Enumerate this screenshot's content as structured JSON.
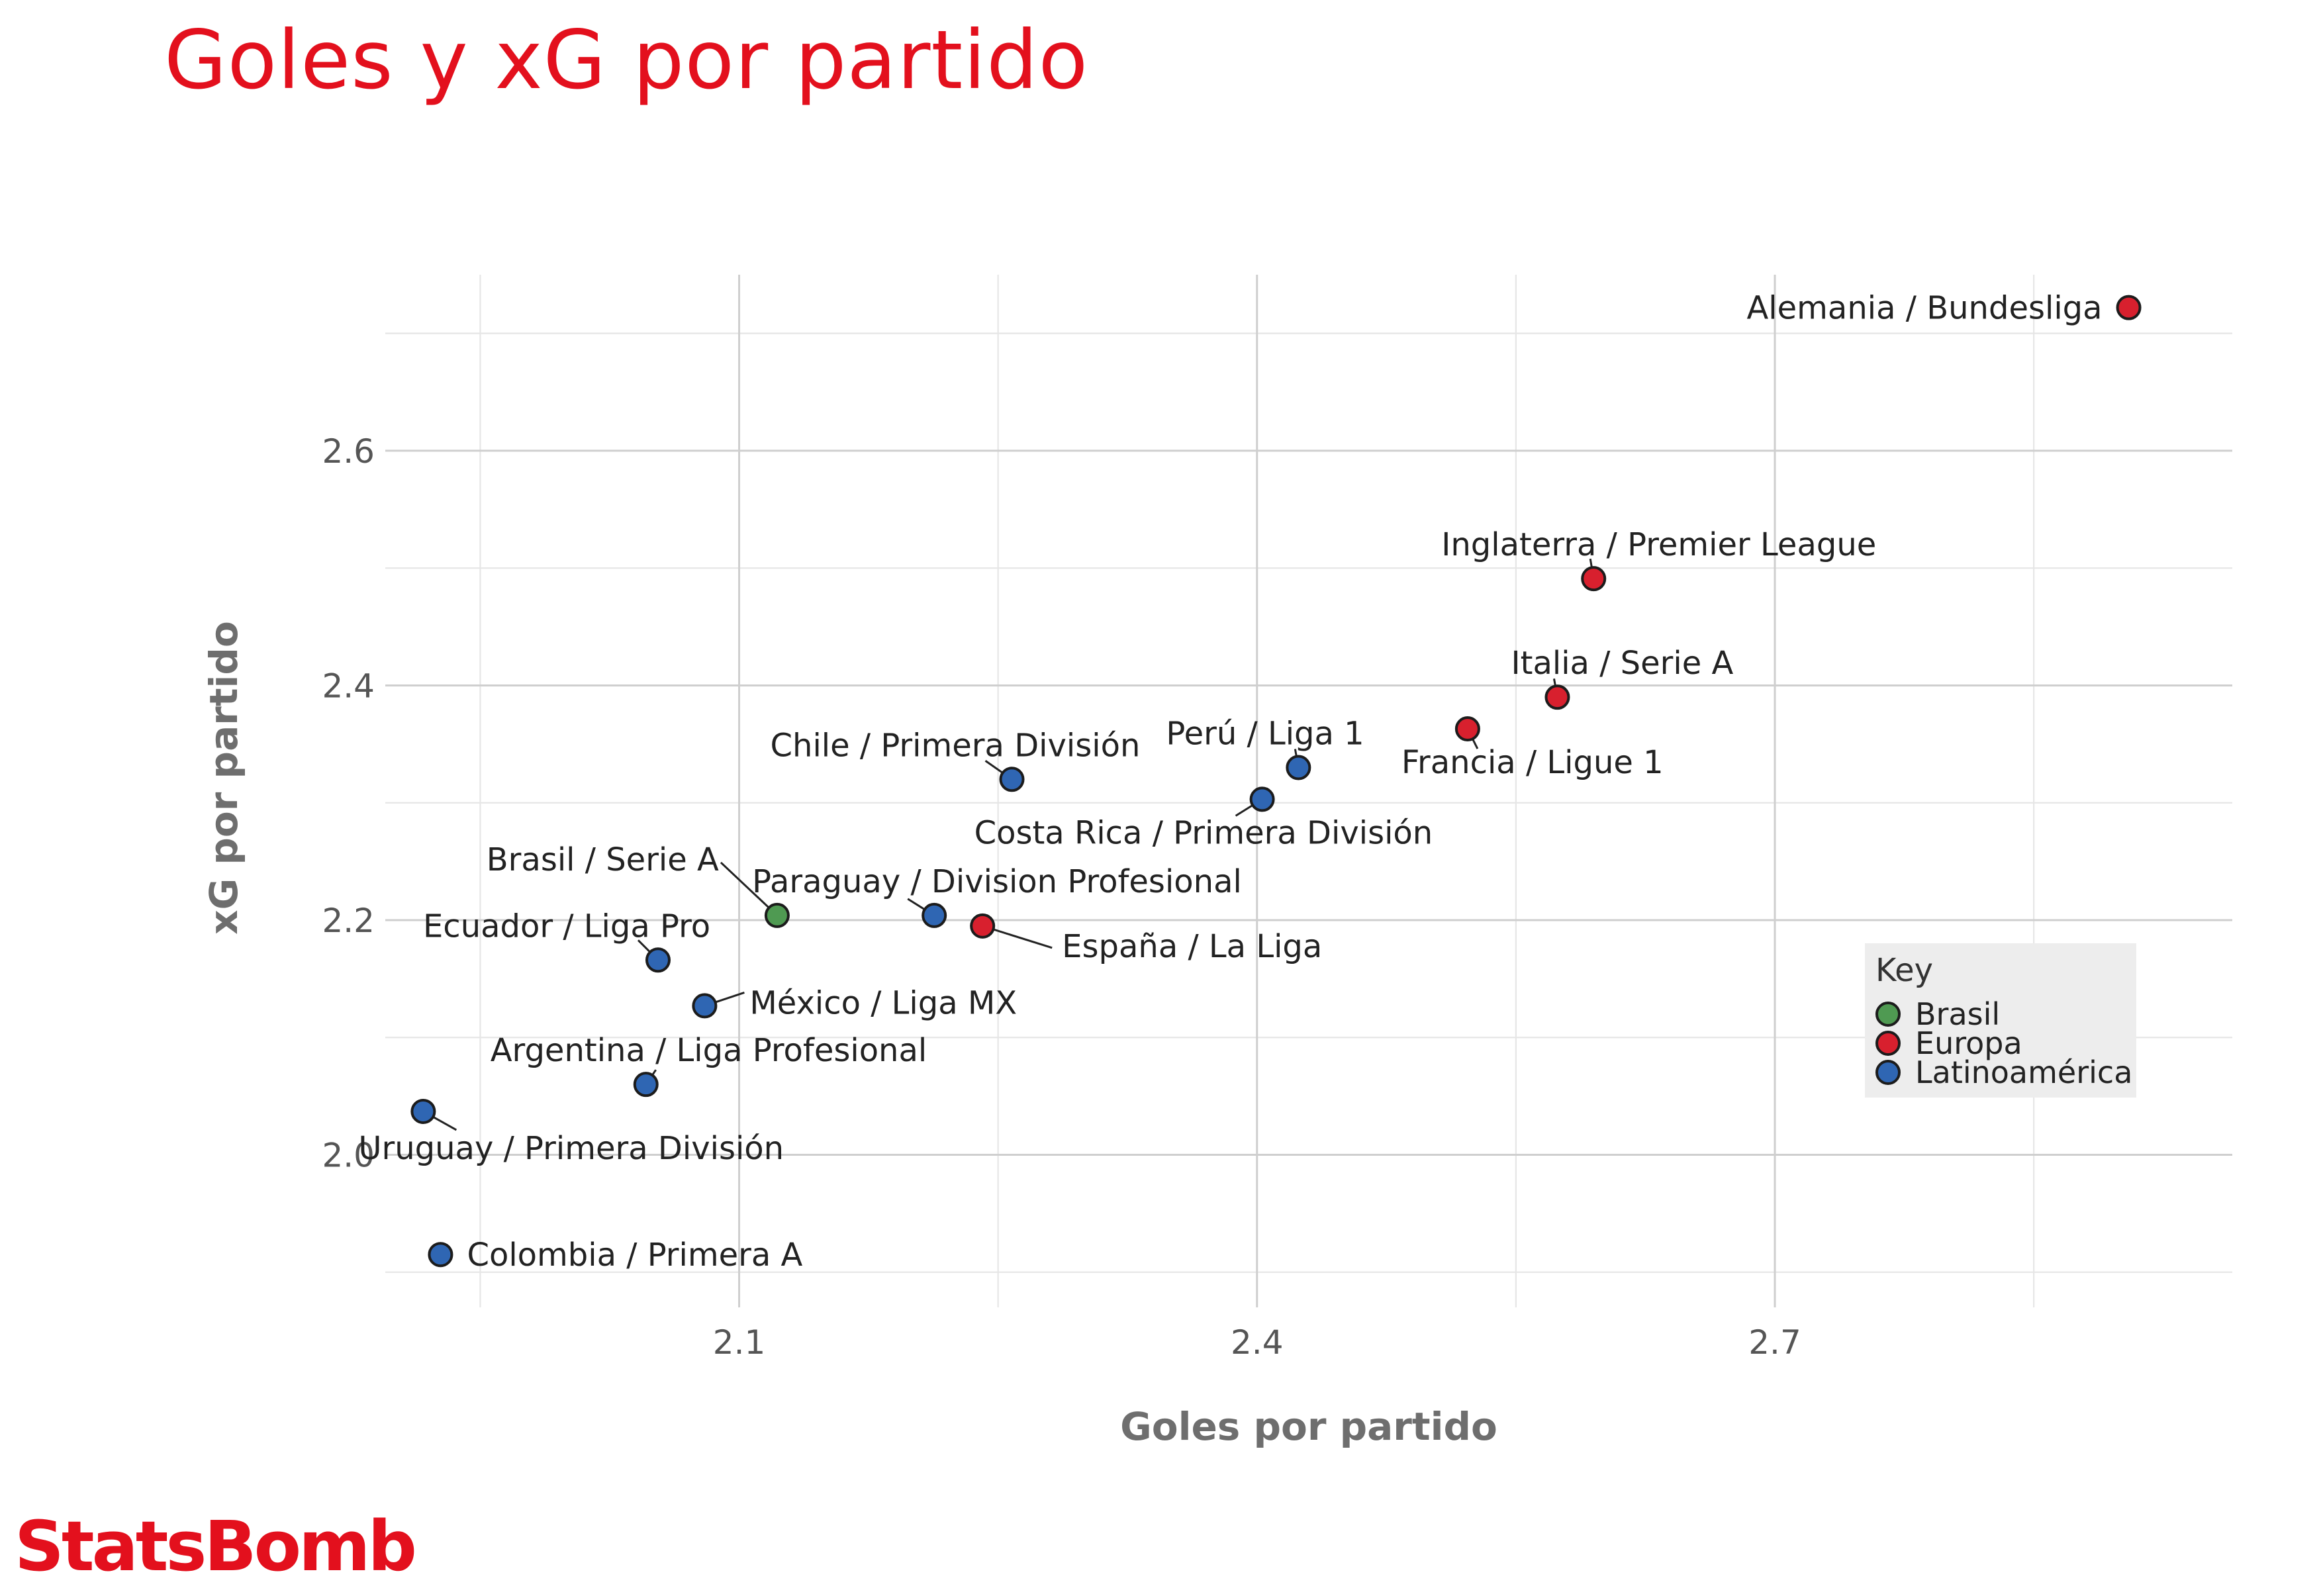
{
  "title": "Goles y xG por partido",
  "brand": "StatsBomb",
  "chart_data": {
    "type": "scatter",
    "title": "Goles y xG por partido",
    "xlabel": "Goles por partido",
    "ylabel": "xG por partido",
    "xlim": [
      1.895,
      2.965
    ],
    "ylim": [
      1.87,
      2.75
    ],
    "x_ticks": [
      2.1,
      2.4,
      2.7
    ],
    "y_ticks": [
      2.0,
      2.2,
      2.4,
      2.6
    ],
    "x_tick_labels": [
      "2.1",
      "2.4",
      "2.7"
    ],
    "y_tick_labels": [
      "2.0",
      "2.2",
      "2.4",
      "2.6"
    ],
    "grid": true,
    "legend": {
      "title": "Key",
      "position": "right",
      "entries": [
        {
          "name": "Brasil",
          "color": "#4f9a52"
        },
        {
          "name": "Europa",
          "color": "#d8202e"
        },
        {
          "name": "Latinoamérica",
          "color": "#2f66b3"
        }
      ]
    },
    "points": [
      {
        "label": "Alemania / Bundesliga",
        "group": "Europa",
        "x": 2.905,
        "y": 2.722
      },
      {
        "label": "Inglaterra / Premier League",
        "group": "Europa",
        "x": 2.595,
        "y": 2.491
      },
      {
        "label": "Italia / Serie A",
        "group": "Europa",
        "x": 2.574,
        "y": 2.39
      },
      {
        "label": "Francia / Ligue 1",
        "group": "Europa",
        "x": 2.522,
        "y": 2.363
      },
      {
        "label": "España / La Liga",
        "group": "Europa",
        "x": 2.241,
        "y": 2.195
      },
      {
        "label": "Perú / Liga 1",
        "group": "Latinoamérica",
        "x": 2.424,
        "y": 2.33
      },
      {
        "label": "Costa Rica / Primera División",
        "group": "Latinoamérica",
        "x": 2.403,
        "y": 2.303
      },
      {
        "label": "Chile / Primera División",
        "group": "Latinoamérica",
        "x": 2.258,
        "y": 2.32
      },
      {
        "label": "Paraguay / Division Profesional",
        "group": "Latinoamérica",
        "x": 2.213,
        "y": 2.204
      },
      {
        "label": "Brasil / Serie A",
        "group": "Brasil",
        "x": 2.122,
        "y": 2.204
      },
      {
        "label": "Ecuador / Liga Pro",
        "group": "Latinoamérica",
        "x": 2.053,
        "y": 2.166
      },
      {
        "label": "México / Liga MX",
        "group": "Latinoamérica",
        "x": 2.08,
        "y": 2.127
      },
      {
        "label": "Argentina / Liga Profesional",
        "group": "Latinoamérica",
        "x": 2.046,
        "y": 2.06
      },
      {
        "label": "Uruguay / Primera División",
        "group": "Latinoamérica",
        "x": 1.917,
        "y": 2.037
      },
      {
        "label": "Colombia / Primera A",
        "group": "Latinoamérica",
        "x": 1.927,
        "y": 1.915
      }
    ]
  }
}
